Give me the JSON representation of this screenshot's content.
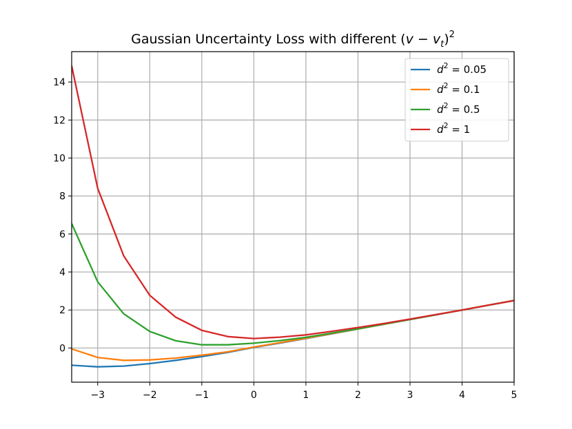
{
  "chart_data": {
    "type": "line",
    "title": "Gaussian Uncertainty Loss with different (v − v_t)²",
    "title_parts": {
      "prefix": "Gaussian Uncertainty Loss with different (",
      "v": "v",
      "minus": " − ",
      "vt": "v",
      "vt_sub": "t",
      "close": ")",
      "sup": "2"
    },
    "xlabel": "",
    "ylabel": "",
    "xlim": [
      -3.5,
      5
    ],
    "ylim": [
      -1.8,
      15.6
    ],
    "x_ticks": [
      -3,
      -2,
      -1,
      0,
      1,
      2,
      3,
      4,
      5
    ],
    "x_tick_labels": [
      "−3",
      "−2",
      "−1",
      "0",
      "1",
      "2",
      "3",
      "4",
      "5"
    ],
    "y_ticks": [
      0,
      2,
      4,
      6,
      8,
      10,
      12,
      14
    ],
    "y_tick_labels": [
      "0",
      "2",
      "4",
      "6",
      "8",
      "10",
      "12",
      "14"
    ],
    "grid": true,
    "legend_position": "top-right",
    "x": [
      -3.5,
      -3.0,
      -2.5,
      -2.0,
      -1.5,
      -1.0,
      -0.5,
      0.0,
      0.5,
      1.0,
      1.5,
      2.0,
      2.5,
      3.0,
      3.5,
      4.0,
      4.5,
      5.0
    ],
    "series": [
      {
        "name": "d² = 0.05",
        "d2": "0.05",
        "color": "#1f77b4",
        "values": [
          -0.91,
          -0.99,
          -0.95,
          -0.82,
          -0.65,
          -0.45,
          -0.23,
          0.03,
          0.26,
          0.5,
          0.75,
          1.0,
          1.25,
          1.5,
          1.75,
          2.0,
          2.25,
          2.5
        ]
      },
      {
        "name": "d² = 0.1",
        "d2": "0.1",
        "color": "#ff7f0e",
        "values": [
          -0.05,
          -0.5,
          -0.65,
          -0.63,
          -0.53,
          -0.38,
          -0.2,
          0.05,
          0.28,
          0.51,
          0.76,
          1.0,
          1.25,
          1.5,
          1.75,
          2.0,
          2.25,
          2.5
        ]
      },
      {
        "name": "d² = 0.5",
        "d2": "0.5",
        "color": "#2ca02c",
        "values": [
          6.55,
          3.48,
          1.8,
          0.87,
          0.38,
          0.17,
          0.17,
          0.25,
          0.39,
          0.56,
          0.78,
          1.01,
          1.26,
          1.5,
          1.75,
          2.0,
          2.25,
          2.5
        ]
      },
      {
        "name": "d² = 1",
        "d2": "1",
        "color": "#d62728",
        "values": [
          14.85,
          8.4,
          4.85,
          2.77,
          1.62,
          0.93,
          0.6,
          0.5,
          0.57,
          0.69,
          0.88,
          1.08,
          1.29,
          1.52,
          1.76,
          2.0,
          2.25,
          2.5
        ]
      }
    ]
  }
}
